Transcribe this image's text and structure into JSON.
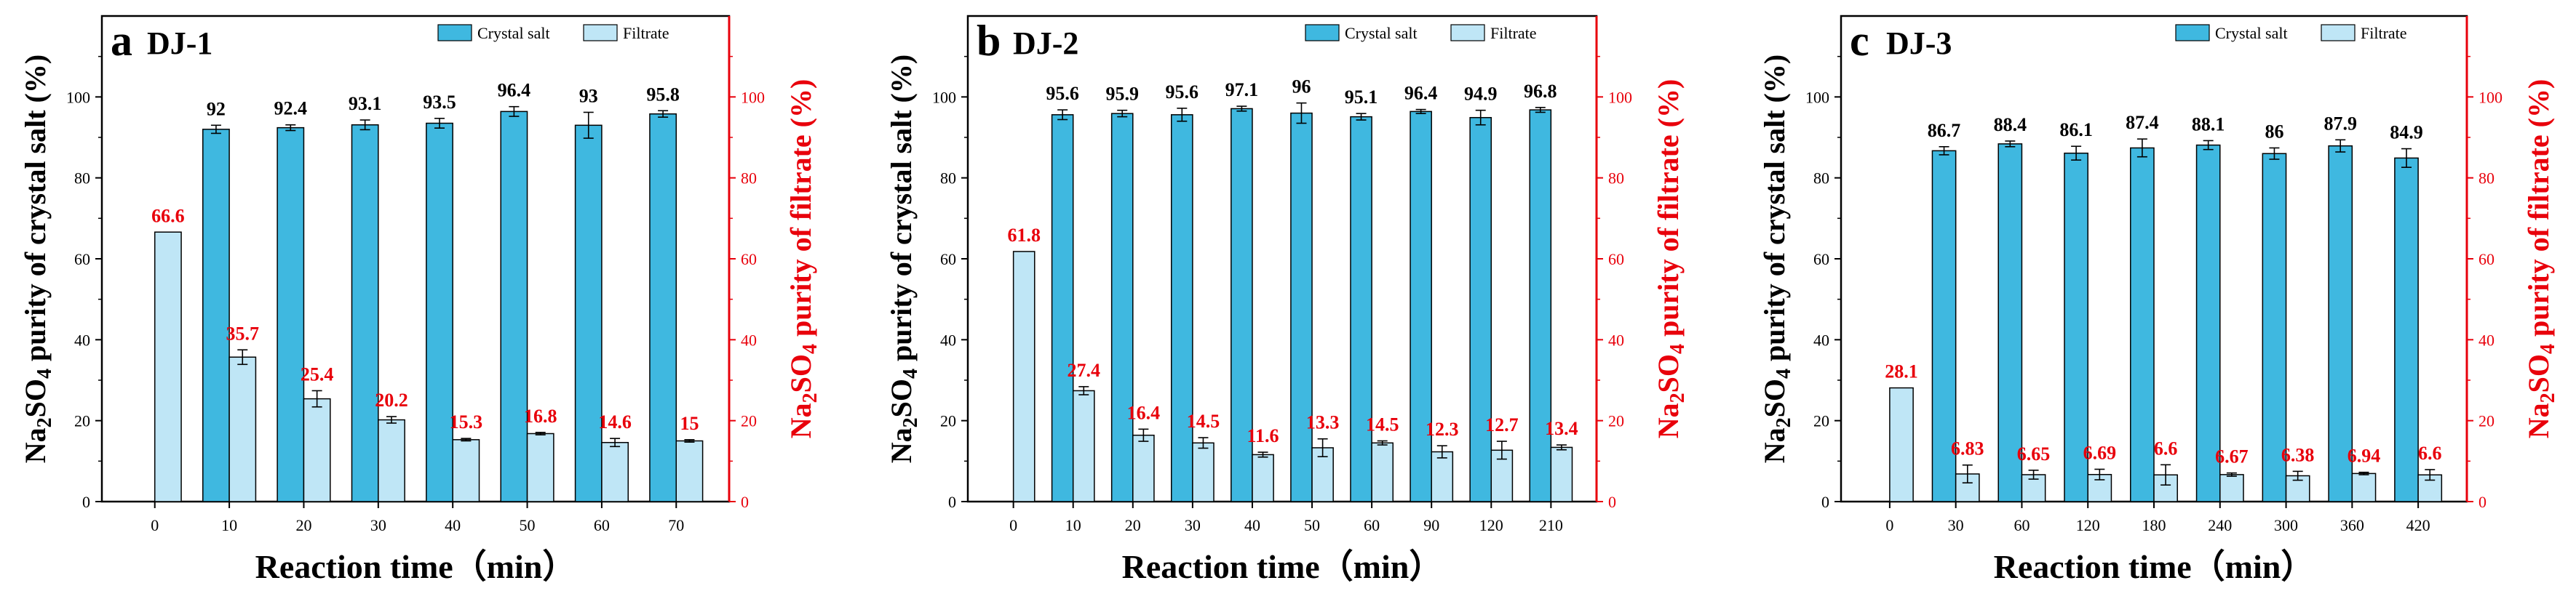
{
  "chart_data": [
    {
      "type": "bar",
      "panel_letter": "a",
      "title": "DJ-1",
      "categories": [
        "0",
        "10",
        "20",
        "30",
        "40",
        "50",
        "60",
        "70"
      ],
      "series": [
        {
          "name": "Crystal salt",
          "color": "#3fb8e0",
          "axis": "left",
          "values": [
            null,
            92,
            92.4,
            93.1,
            93.5,
            96.4,
            93,
            95.8
          ],
          "labels": [
            "",
            "92",
            "92.4",
            "93.1",
            "93.5",
            "96.4",
            "93",
            "95.8"
          ],
          "errors": [
            0,
            1,
            0.7,
            1.2,
            1.2,
            1.2,
            3.2,
            0.8
          ]
        },
        {
          "name": "Filtrate",
          "color": "#bfe6f6",
          "axis": "right",
          "values": [
            66.6,
            35.7,
            25.4,
            20.2,
            15.3,
            16.8,
            14.6,
            15
          ],
          "labels": [
            "66.6",
            "35.7",
            "25.4",
            "20.2",
            "15.3",
            "16.8",
            "14.6",
            "15"
          ],
          "errors": [
            0,
            1.8,
            2,
            0.8,
            0.3,
            0.3,
            1,
            0.3
          ]
        }
      ],
      "xlabel": "Reaction time（min）",
      "ylabel_left_pre": "Na",
      "ylabel_left_sub1": "2",
      "ylabel_left_mid": "SO",
      "ylabel_left_sub2": "4",
      "ylabel_left_post": " purity of crystal salt (%)",
      "ylabel_right_pre": "Na",
      "ylabel_right_sub1": "2",
      "ylabel_right_mid": "SO",
      "ylabel_right_sub2": "4",
      "ylabel_right_post": " purity of filtrate (%)",
      "ylim": [
        0,
        120
      ],
      "yticks": [
        "0",
        "20",
        "40",
        "60",
        "80",
        "100"
      ],
      "legend": [
        "Crystal salt",
        "Filtrate"
      ],
      "legend_position": "top-right"
    },
    {
      "type": "bar",
      "panel_letter": "b",
      "title": "DJ-2",
      "categories": [
        "0",
        "10",
        "20",
        "30",
        "40",
        "50",
        "60",
        "90",
        "120",
        "210"
      ],
      "series": [
        {
          "name": "Crystal salt",
          "color": "#3fb8e0",
          "axis": "left",
          "values": [
            null,
            95.6,
            95.9,
            95.6,
            97.1,
            96,
            95.1,
            96.4,
            94.9,
            96.8
          ],
          "labels": [
            "",
            "95.6",
            "95.9",
            "95.6",
            "97.1",
            "96",
            "95.1",
            "96.4",
            "94.9",
            "96.8"
          ],
          "errors": [
            0,
            1.2,
            0.8,
            1.6,
            0.6,
            2.5,
            0.8,
            0.5,
            1.8,
            0.6
          ]
        },
        {
          "name": "Filtrate",
          "color": "#bfe6f6",
          "axis": "right",
          "values": [
            61.8,
            27.4,
            16.4,
            14.5,
            11.6,
            13.3,
            14.5,
            12.3,
            12.7,
            13.4
          ],
          "labels": [
            "61.8",
            "27.4",
            "16.4",
            "14.5",
            "11.6",
            "13.3",
            "14.5",
            "12.3",
            "12.7",
            "13.4"
          ],
          "errors": [
            0,
            1,
            1.5,
            1.3,
            0.6,
            2.2,
            0.5,
            1.5,
            2.2,
            0.6
          ]
        }
      ],
      "xlabel": "Reaction time（min）",
      "ylabel_left_pre": "Na",
      "ylabel_left_sub1": "2",
      "ylabel_left_mid": "SO",
      "ylabel_left_sub2": "4",
      "ylabel_left_post": " purity of crystal salt (%)",
      "ylabel_right_pre": "Na",
      "ylabel_right_sub1": "2",
      "ylabel_right_mid": "SO",
      "ylabel_right_sub2": "4",
      "ylabel_right_post": " purity of filtrate (%)",
      "ylim": [
        0,
        120
      ],
      "yticks": [
        "0",
        "20",
        "40",
        "60",
        "80",
        "100"
      ],
      "legend": [
        "Crystal salt",
        "Filtrate"
      ],
      "legend_position": "top-right"
    },
    {
      "type": "bar",
      "panel_letter": "c",
      "title": "DJ-3",
      "categories": [
        "0",
        "30",
        "60",
        "120",
        "180",
        "240",
        "300",
        "360",
        "420"
      ],
      "series": [
        {
          "name": "Crystal salt",
          "color": "#3fb8e0",
          "axis": "left",
          "values": [
            null,
            86.7,
            88.4,
            86.1,
            87.4,
            88.1,
            86,
            87.9,
            84.9
          ],
          "labels": [
            "",
            "86.7",
            "88.4",
            "86.1",
            "87.4",
            "88.1",
            "86",
            "87.9",
            "84.9"
          ],
          "errors": [
            0,
            1,
            0.7,
            1.7,
            2.2,
            1.1,
            1.4,
            1.5,
            2.3
          ]
        },
        {
          "name": "Filtrate",
          "color": "#bfe6f6",
          "axis": "right",
          "values": [
            28.1,
            6.83,
            6.65,
            6.69,
            6.6,
            6.67,
            6.38,
            6.94,
            6.6
          ],
          "labels": [
            "28.1",
            "6.83",
            "6.65",
            "6.69",
            "6.6",
            "6.67",
            "6.38",
            "6.94",
            "6.6"
          ],
          "errors": [
            0,
            2.2,
            1.1,
            1.3,
            2.5,
            0.4,
            1.1,
            0.3,
            1.3
          ]
        }
      ],
      "xlabel": "Reaction time（min）",
      "ylabel_left_pre": "Na",
      "ylabel_left_sub1": "2",
      "ylabel_left_mid": "SO",
      "ylabel_left_sub2": "4",
      "ylabel_left_post": " purity of crystal salt (%)",
      "ylabel_right_pre": "Na",
      "ylabel_right_sub1": "2",
      "ylabel_right_mid": "SO",
      "ylabel_right_sub2": "4",
      "ylabel_right_post": " purity of filtrate (%)",
      "ylim": [
        0,
        120
      ],
      "yticks": [
        "0",
        "20",
        "40",
        "60",
        "80",
        "100"
      ],
      "legend": [
        "Crystal salt",
        "Filtrate"
      ],
      "legend_position": "top-right"
    }
  ]
}
